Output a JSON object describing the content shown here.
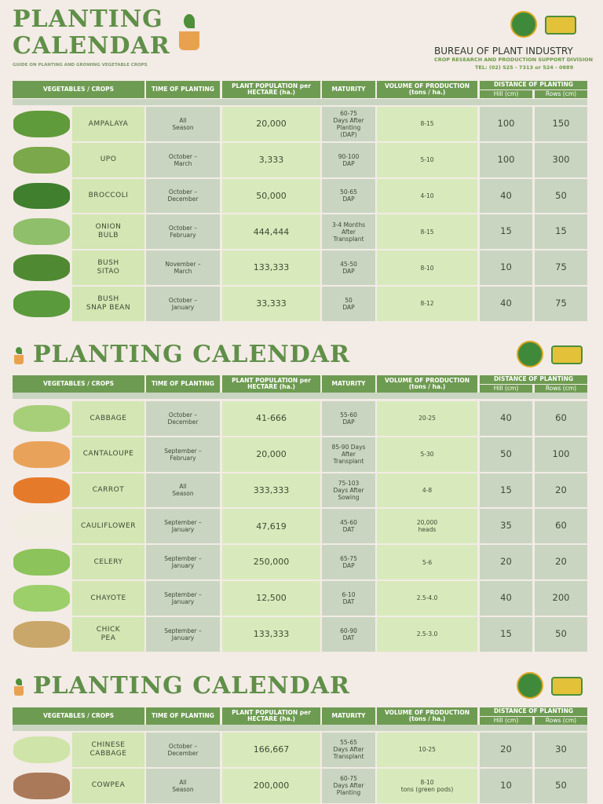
{
  "header": {
    "org": "BUREAU OF PLANT INDUSTRY",
    "division": "CROP RESEARCH AND PRODUCTION SUPPORT DIVISION",
    "tel": "TEL: (02) 525 - 7313 or  524 - 0889",
    "subtitle": "GUIDE ON PLANTING AND GROWING VEGETABLE CROPS"
  },
  "sections": [
    {
      "title": "PLANTING\nCALENDAR",
      "headers": {
        "crops": "VEGETABLES / CROPS",
        "time": "TIME OF PLANTING",
        "population": "PLANT POPULATION per\nHECTARE (ha.)",
        "maturity": "MATURITY",
        "volume": "VOLUME OF PRODUCTION\n(tons / ha.)",
        "distance": "DISTANCE OF PLANTING",
        "hill": "Hill (cm)",
        "rows": "Rows (cm)"
      },
      "rows": [
        [
          "AMPALAYA",
          "All\nSeason",
          "20,000",
          "60-75\nDays After\nPlanting\n(DAP)",
          "8-15",
          "100",
          "150"
        ],
        [
          "UPO",
          "October –\nMarch",
          "3,333",
          "90-100\nDAP",
          "5-10",
          "100",
          "300"
        ],
        [
          "BROCCOLI",
          "October –\nDecember",
          "50,000",
          "50-65\nDAP",
          "4-10",
          "40",
          "50"
        ],
        [
          "ONION\nBULB",
          "October –\nFebruary",
          "444,444",
          "3-4 Months\nAfter\nTransplant",
          "8-15",
          "15",
          "15"
        ],
        [
          "BUSH\nSITAO",
          "November –\nMarch",
          "133,333",
          "45-50\nDAP",
          "8-10",
          "10",
          "75"
        ],
        [
          "BUSH\nSNAP BEAN",
          "October –\nJanuary",
          "33,333",
          "50\nDAP",
          "8-12",
          "40",
          "75"
        ]
      ]
    },
    {
      "title": "PLANTING CALENDAR",
      "headers": {
        "crops": "VEGETABLES / CROPS",
        "time": "TIME OF PLANTING",
        "population": "PLANT POPULATION per\nHECTARE (ha.)",
        "maturity": "MATURITY",
        "volume": "VOLUME OF PRODUCTION\n(tons / ha.)",
        "distance": "DISTANCE OF PLANTING",
        "hill": "Hill (cm)",
        "rows": "Rows (cm)"
      },
      "rows": [
        [
          "CABBAGE",
          "October –\nDecember",
          "41-666",
          "55-60\nDAP",
          "20-25",
          "40",
          "60"
        ],
        [
          "CANTALOUPE",
          "September –\nFebruary",
          "20,000",
          "85-90 Days\nAfter\nTransplant",
          "5-30",
          "50",
          "100"
        ],
        [
          "CARROT",
          "All\nSeason",
          "333,333",
          "75-103\nDays After\nSowing",
          "4-8",
          "15",
          "20"
        ],
        [
          "CAULIFLOWER",
          "September –\nJanuary",
          "47,619",
          "45-60\nDAT",
          "20,000\nheads",
          "35",
          "60"
        ],
        [
          "CELERY",
          "September –\nJanuary",
          "250,000",
          "65-75\nDAP",
          "5-6",
          "20",
          "20"
        ],
        [
          "CHAYOTE",
          "September –\nJanuary",
          "12,500",
          "6-10\nDAT",
          "2.5-4.0",
          "40",
          "200"
        ],
        [
          "CHICK\nPEA",
          "September –\nJanuary",
          "133,333",
          "60-90\nDAT",
          "2.5-3.0",
          "15",
          "50"
        ]
      ]
    },
    {
      "title": "PLANTING CALENDAR",
      "headers": {
        "crops": "VEGETABLES / CROPS",
        "time": "TIME OF PLANTING",
        "population": "PLANT POPULATION per\nHECTARE (ha.)",
        "maturity": "MATURITY",
        "volume": "VOLUME OF PRODUCTION\n(tons / ha.)",
        "distance": "DISTANCE OF PLANTING",
        "hill": "Hill (cm)",
        "rows": "Rows (cm)"
      },
      "rows": [
        [
          "CHINESE\nCABBAGE",
          "October –\nDecember",
          "166,667",
          "55-65\nDays After\nTransplant",
          "10-25",
          "20",
          "30"
        ],
        [
          "COWPEA",
          "All\nSeason",
          "200,000",
          "60-75\nDays After\nPlanting",
          "8-10\ntons (green pods)",
          "10",
          "50"
        ]
      ]
    }
  ]
}
